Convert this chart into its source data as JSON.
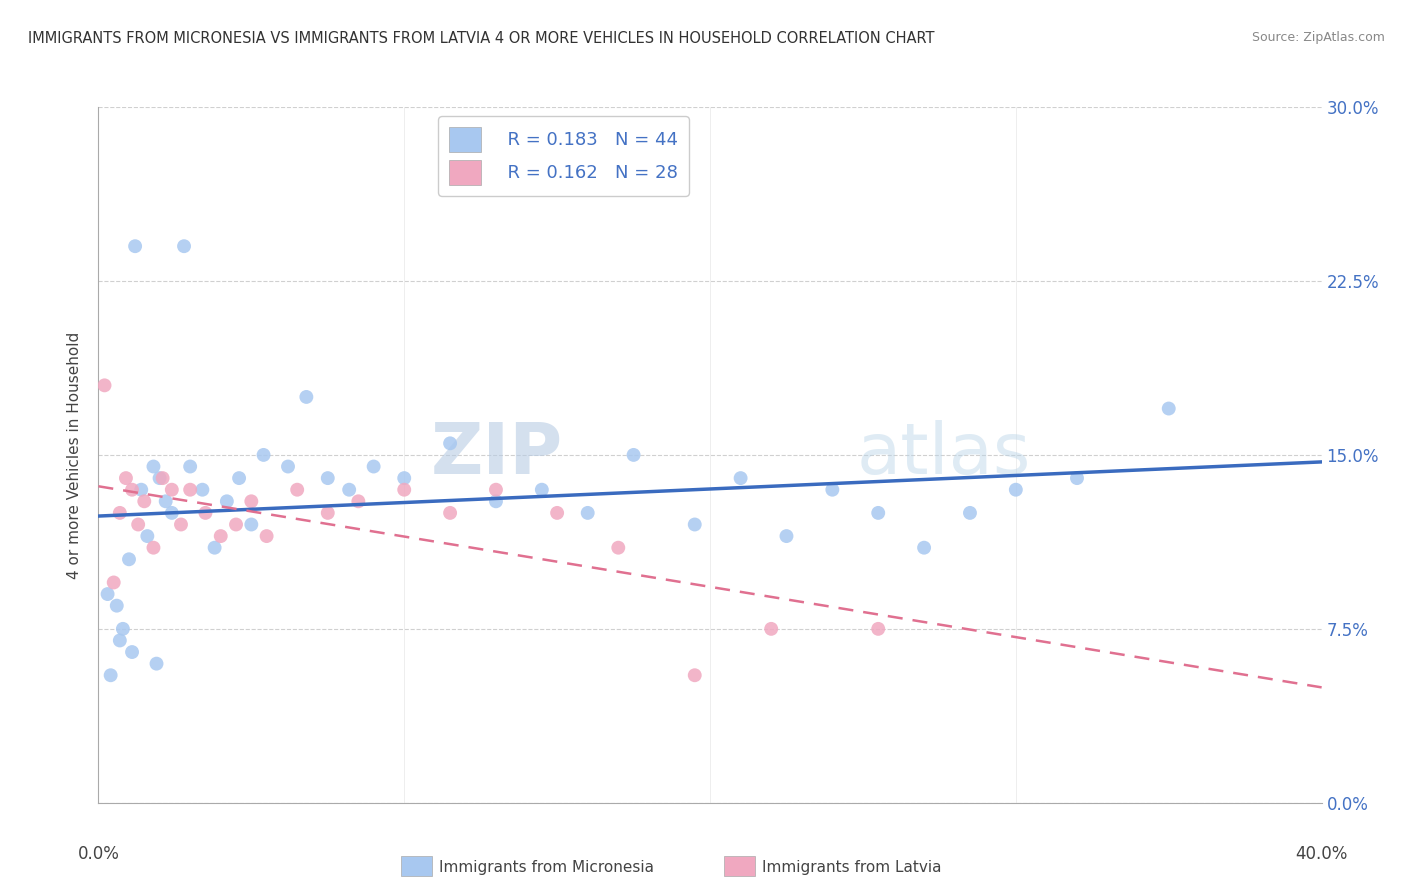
{
  "title": "IMMIGRANTS FROM MICRONESIA VS IMMIGRANTS FROM LATVIA 4 OR MORE VEHICLES IN HOUSEHOLD CORRELATION CHART",
  "source": "Source: ZipAtlas.com",
  "ylabel": "4 or more Vehicles in Household",
  "xlim": [
    0.0,
    40.0
  ],
  "ylim": [
    0.0,
    30.0
  ],
  "yticks": [
    0.0,
    7.5,
    15.0,
    22.5,
    30.0
  ],
  "ytick_labels": [
    "0.0%",
    "7.5%",
    "15.0%",
    "22.5%",
    "30.0%"
  ],
  "legend_r_micro": "R = 0.183",
  "legend_n_micro": "N = 44",
  "legend_r_latvia": "R = 0.162",
  "legend_n_latvia": "N = 28",
  "color_micro": "#a8c8f0",
  "color_latvia": "#f0a8c0",
  "line_color_micro": "#3a6bbf",
  "line_color_latvia": "#e07090",
  "watermark_zip": "ZIP",
  "watermark_atlas": "atlas",
  "micro_x": [
    1.2,
    2.8,
    0.3,
    0.6,
    0.8,
    1.0,
    1.4,
    1.6,
    1.8,
    2.0,
    2.2,
    2.4,
    3.0,
    3.4,
    3.8,
    4.2,
    4.6,
    5.0,
    5.4,
    6.2,
    6.8,
    7.5,
    8.2,
    9.0,
    10.0,
    11.5,
    13.0,
    14.5,
    16.0,
    17.5,
    19.5,
    21.0,
    22.5,
    24.0,
    25.5,
    27.0,
    28.5,
    30.0,
    32.0,
    35.0,
    0.4,
    0.7,
    1.1,
    1.9
  ],
  "micro_y": [
    24.0,
    24.0,
    9.0,
    8.5,
    7.5,
    10.5,
    13.5,
    11.5,
    14.5,
    14.0,
    13.0,
    12.5,
    14.5,
    13.5,
    11.0,
    13.0,
    14.0,
    12.0,
    15.0,
    14.5,
    17.5,
    14.0,
    13.5,
    14.5,
    14.0,
    15.5,
    13.0,
    13.5,
    12.5,
    15.0,
    12.0,
    14.0,
    11.5,
    13.5,
    12.5,
    11.0,
    12.5,
    13.5,
    14.0,
    17.0,
    5.5,
    7.0,
    6.5,
    6.0
  ],
  "latvia_x": [
    0.2,
    0.5,
    0.7,
    0.9,
    1.1,
    1.3,
    1.5,
    1.8,
    2.1,
    2.4,
    2.7,
    3.0,
    3.5,
    4.0,
    4.5,
    5.0,
    5.5,
    6.5,
    7.5,
    8.5,
    10.0,
    11.5,
    13.0,
    15.0,
    17.0,
    19.5,
    22.0,
    25.5
  ],
  "latvia_y": [
    18.0,
    9.5,
    12.5,
    14.0,
    13.5,
    12.0,
    13.0,
    11.0,
    14.0,
    13.5,
    12.0,
    13.5,
    12.5,
    11.5,
    12.0,
    13.0,
    11.5,
    13.5,
    12.5,
    13.0,
    13.5,
    12.5,
    13.5,
    12.5,
    11.0,
    5.5,
    7.5,
    7.5
  ]
}
